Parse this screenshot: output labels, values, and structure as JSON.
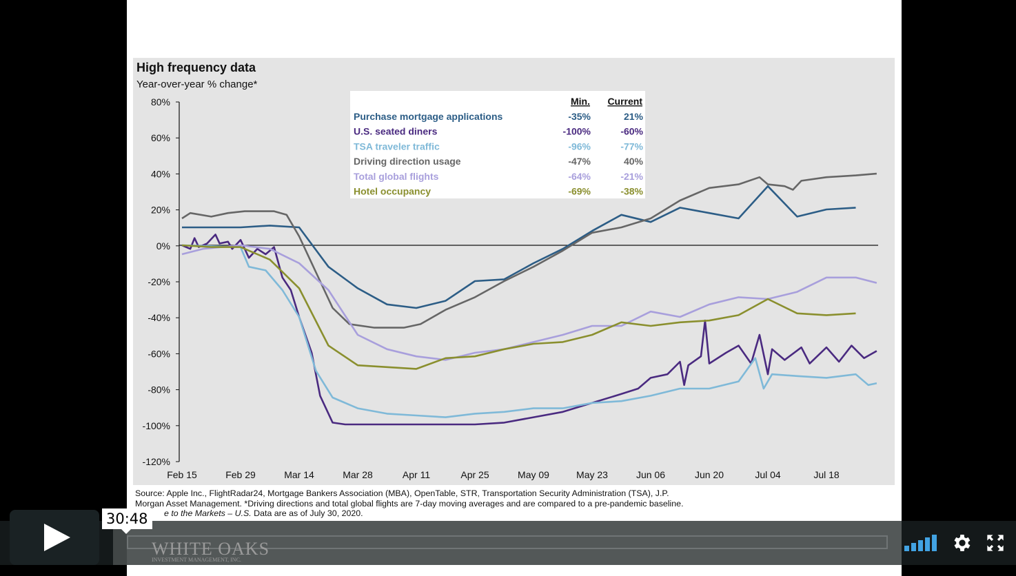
{
  "player": {
    "time_tooltip": "30:48",
    "play_icon": "play-icon",
    "volume_icon": "volume-bars-icon",
    "settings_icon": "gear-icon",
    "fullscreen_icon": "fullscreen-icon",
    "volume_level": 1.0,
    "accent_color": "#42a3e3"
  },
  "slide": {
    "title": "High frequency data",
    "subtitle": "Year-over-year % change*",
    "source_line1": "Source: Apple Inc., FlightRadar24, Mortgage Bankers Association (MBA), OpenTable, STR, Transportation Security Administration (TSA),  J.P.",
    "source_line2": "Morgan Asset Management. *Driving directions and total global flights are 7-day moving averages and are compared to a pre-pandemic baseline.",
    "source_line3_italic": "e to the Markets – U.S.",
    "source_line3": " Data are as of July 30, 2020.",
    "watermark": "WHITE OAKS",
    "watermark_sub": "INVESTMENT MANAGEMENT, INC."
  },
  "chart_data": {
    "type": "line",
    "title": "High frequency data",
    "ylabel": "Year-over-year % change*",
    "ylim": [
      -120,
      80
    ],
    "y_ticks": [
      "80%",
      "60%",
      "40%",
      "20%",
      "0%",
      "-20%",
      "-40%",
      "-60%",
      "-80%",
      "-100%",
      "-120%"
    ],
    "x_ticks": [
      "Feb 15",
      "Feb 29",
      "Mar 14",
      "Mar 28",
      "Apr 11",
      "Apr 25",
      "May 09",
      "May 23",
      "Jun 06",
      "Jun 20",
      "Jul 04",
      "Jul 18"
    ],
    "x_tick_dates": [
      "2020-02-15",
      "2020-02-29",
      "2020-03-14",
      "2020-03-28",
      "2020-04-11",
      "2020-04-25",
      "2020-05-09",
      "2020-05-23",
      "2020-06-06",
      "2020-06-20",
      "2020-07-04",
      "2020-07-18"
    ],
    "xlim": [
      "2020-02-15",
      "2020-07-30"
    ],
    "grid": false,
    "legend_headers": {
      "min": "Min.",
      "current": "Current"
    },
    "legend_placement": "top-center",
    "series": [
      {
        "name": "Purchase mortgage applications",
        "color": "#2c5d86",
        "min": "-35%",
        "current": "21%",
        "points": [
          [
            "2020-02-15",
            10
          ],
          [
            "2020-02-22",
            10
          ],
          [
            "2020-02-29",
            10
          ],
          [
            "2020-03-07",
            11
          ],
          [
            "2020-03-14",
            10
          ],
          [
            "2020-03-21",
            -12
          ],
          [
            "2020-03-28",
            -24
          ],
          [
            "2020-04-04",
            -33
          ],
          [
            "2020-04-11",
            -35
          ],
          [
            "2020-04-18",
            -31
          ],
          [
            "2020-04-25",
            -20
          ],
          [
            "2020-05-02",
            -19
          ],
          [
            "2020-05-09",
            -10
          ],
          [
            "2020-05-16",
            -2
          ],
          [
            "2020-05-23",
            8
          ],
          [
            "2020-05-30",
            17
          ],
          [
            "2020-06-06",
            13
          ],
          [
            "2020-06-13",
            21
          ],
          [
            "2020-06-20",
            18
          ],
          [
            "2020-06-27",
            15
          ],
          [
            "2020-07-04",
            33
          ],
          [
            "2020-07-11",
            16
          ],
          [
            "2020-07-18",
            20
          ],
          [
            "2020-07-25",
            21
          ]
        ]
      },
      {
        "name": "U.S. seated diners",
        "color": "#4a2a80",
        "min": "-100%",
        "current": "-60%",
        "points": [
          [
            "2020-02-15",
            0
          ],
          [
            "2020-02-17",
            -2
          ],
          [
            "2020-02-18",
            4
          ],
          [
            "2020-02-19",
            -1
          ],
          [
            "2020-02-21",
            1
          ],
          [
            "2020-02-23",
            6
          ],
          [
            "2020-02-24",
            1
          ],
          [
            "2020-02-26",
            2
          ],
          [
            "2020-02-27",
            -2
          ],
          [
            "2020-02-29",
            3
          ],
          [
            "2020-03-02",
            -7
          ],
          [
            "2020-03-04",
            -2
          ],
          [
            "2020-03-06",
            -5
          ],
          [
            "2020-03-08",
            -1
          ],
          [
            "2020-03-10",
            -18
          ],
          [
            "2020-03-12",
            -25
          ],
          [
            "2020-03-14",
            -40
          ],
          [
            "2020-03-17",
            -60
          ],
          [
            "2020-03-19",
            -84
          ],
          [
            "2020-03-22",
            -99
          ],
          [
            "2020-03-25",
            -100
          ],
          [
            "2020-04-11",
            -100
          ],
          [
            "2020-04-25",
            -100
          ],
          [
            "2020-05-02",
            -99
          ],
          [
            "2020-05-09",
            -96
          ],
          [
            "2020-05-16",
            -93
          ],
          [
            "2020-05-23",
            -88
          ],
          [
            "2020-05-30",
            -83
          ],
          [
            "2020-06-03",
            -80
          ],
          [
            "2020-06-06",
            -74
          ],
          [
            "2020-06-10",
            -72
          ],
          [
            "2020-06-13",
            -65
          ],
          [
            "2020-06-14",
            -78
          ],
          [
            "2020-06-15",
            -67
          ],
          [
            "2020-06-18",
            -62
          ],
          [
            "2020-06-19",
            -42
          ],
          [
            "2020-06-20",
            -66
          ],
          [
            "2020-06-24",
            -60
          ],
          [
            "2020-06-27",
            -56
          ],
          [
            "2020-06-30",
            -66
          ],
          [
            "2020-07-02",
            -50
          ],
          [
            "2020-07-04",
            -72
          ],
          [
            "2020-07-05",
            -58
          ],
          [
            "2020-07-08",
            -64
          ],
          [
            "2020-07-12",
            -57
          ],
          [
            "2020-07-14",
            -66
          ],
          [
            "2020-07-18",
            -57
          ],
          [
            "2020-07-21",
            -65
          ],
          [
            "2020-07-24",
            -56
          ],
          [
            "2020-07-27",
            -63
          ],
          [
            "2020-07-30",
            -59
          ]
        ]
      },
      {
        "name": "TSA traveler traffic",
        "color": "#7fb9d8",
        "min": "-96%",
        "current": "-77%",
        "points": [
          [
            "2020-02-15",
            0
          ],
          [
            "2020-02-29",
            -1
          ],
          [
            "2020-03-02",
            -12
          ],
          [
            "2020-03-06",
            -14
          ],
          [
            "2020-03-10",
            -25
          ],
          [
            "2020-03-14",
            -40
          ],
          [
            "2020-03-18",
            -70
          ],
          [
            "2020-03-22",
            -85
          ],
          [
            "2020-03-28",
            -91
          ],
          [
            "2020-04-04",
            -94
          ],
          [
            "2020-04-11",
            -95
          ],
          [
            "2020-04-18",
            -96
          ],
          [
            "2020-04-25",
            -94
          ],
          [
            "2020-05-02",
            -93
          ],
          [
            "2020-05-09",
            -91
          ],
          [
            "2020-05-16",
            -91
          ],
          [
            "2020-05-23",
            -88
          ],
          [
            "2020-05-30",
            -87
          ],
          [
            "2020-06-06",
            -84
          ],
          [
            "2020-06-13",
            -80
          ],
          [
            "2020-06-20",
            -80
          ],
          [
            "2020-06-27",
            -76
          ],
          [
            "2020-07-01",
            -63
          ],
          [
            "2020-07-03",
            -80
          ],
          [
            "2020-07-05",
            -72
          ],
          [
            "2020-07-11",
            -73
          ],
          [
            "2020-07-18",
            -74
          ],
          [
            "2020-07-25",
            -72
          ],
          [
            "2020-07-28",
            -78
          ],
          [
            "2020-07-30",
            -77
          ]
        ]
      },
      {
        "name": "Driving direction usage",
        "color": "#666666",
        "min": "-47%",
        "current": "40%",
        "points": [
          [
            "2020-02-15",
            15
          ],
          [
            "2020-02-17",
            18
          ],
          [
            "2020-02-22",
            16
          ],
          [
            "2020-02-26",
            18
          ],
          [
            "2020-03-01",
            19
          ],
          [
            "2020-03-08",
            19
          ],
          [
            "2020-03-11",
            17
          ],
          [
            "2020-03-14",
            5
          ],
          [
            "2020-03-18",
            -15
          ],
          [
            "2020-03-22",
            -35
          ],
          [
            "2020-03-26",
            -44
          ],
          [
            "2020-04-01",
            -46
          ],
          [
            "2020-04-08",
            -46
          ],
          [
            "2020-04-12",
            -44
          ],
          [
            "2020-04-18",
            -36
          ],
          [
            "2020-04-25",
            -29
          ],
          [
            "2020-05-02",
            -20
          ],
          [
            "2020-05-09",
            -12
          ],
          [
            "2020-05-16",
            -3
          ],
          [
            "2020-05-23",
            7
          ],
          [
            "2020-05-30",
            10
          ],
          [
            "2020-06-06",
            15
          ],
          [
            "2020-06-13",
            25
          ],
          [
            "2020-06-20",
            32
          ],
          [
            "2020-06-27",
            34
          ],
          [
            "2020-07-02",
            38
          ],
          [
            "2020-07-04",
            34
          ],
          [
            "2020-07-08",
            33
          ],
          [
            "2020-07-10",
            31
          ],
          [
            "2020-07-12",
            36
          ],
          [
            "2020-07-18",
            38
          ],
          [
            "2020-07-25",
            39
          ],
          [
            "2020-07-30",
            40
          ]
        ]
      },
      {
        "name": "Total global flights",
        "color": "#a89fdc",
        "min": "-64%",
        "current": "-21%",
        "points": [
          [
            "2020-02-15",
            -5
          ],
          [
            "2020-02-20",
            -2
          ],
          [
            "2020-02-29",
            0
          ],
          [
            "2020-03-07",
            -2
          ],
          [
            "2020-03-14",
            -10
          ],
          [
            "2020-03-21",
            -25
          ],
          [
            "2020-03-28",
            -50
          ],
          [
            "2020-04-04",
            -58
          ],
          [
            "2020-04-11",
            -62
          ],
          [
            "2020-04-18",
            -64
          ],
          [
            "2020-04-25",
            -60
          ],
          [
            "2020-05-02",
            -58
          ],
          [
            "2020-05-09",
            -54
          ],
          [
            "2020-05-16",
            -50
          ],
          [
            "2020-05-23",
            -45
          ],
          [
            "2020-05-30",
            -45
          ],
          [
            "2020-06-06",
            -37
          ],
          [
            "2020-06-13",
            -40
          ],
          [
            "2020-06-20",
            -33
          ],
          [
            "2020-06-27",
            -29
          ],
          [
            "2020-07-04",
            -30
          ],
          [
            "2020-07-11",
            -26
          ],
          [
            "2020-07-18",
            -18
          ],
          [
            "2020-07-25",
            -18
          ],
          [
            "2020-07-30",
            -21
          ]
        ]
      },
      {
        "name": "Hotel occupancy",
        "color": "#8a8f2e",
        "min": "-69%",
        "current": "-38%",
        "points": [
          [
            "2020-02-15",
            0
          ],
          [
            "2020-02-22",
            -1
          ],
          [
            "2020-02-29",
            -1
          ],
          [
            "2020-03-07",
            -8
          ],
          [
            "2020-03-14",
            -24
          ],
          [
            "2020-03-21",
            -56
          ],
          [
            "2020-03-28",
            -67
          ],
          [
            "2020-04-04",
            -68
          ],
          [
            "2020-04-11",
            -69
          ],
          [
            "2020-04-18",
            -63
          ],
          [
            "2020-04-25",
            -62
          ],
          [
            "2020-05-02",
            -58
          ],
          [
            "2020-05-09",
            -55
          ],
          [
            "2020-05-16",
            -54
          ],
          [
            "2020-05-23",
            -50
          ],
          [
            "2020-05-30",
            -43
          ],
          [
            "2020-06-06",
            -45
          ],
          [
            "2020-06-13",
            -43
          ],
          [
            "2020-06-20",
            -42
          ],
          [
            "2020-06-27",
            -39
          ],
          [
            "2020-07-04",
            -30
          ],
          [
            "2020-07-11",
            -38
          ],
          [
            "2020-07-18",
            -39
          ],
          [
            "2020-07-25",
            -38
          ]
        ]
      }
    ]
  }
}
